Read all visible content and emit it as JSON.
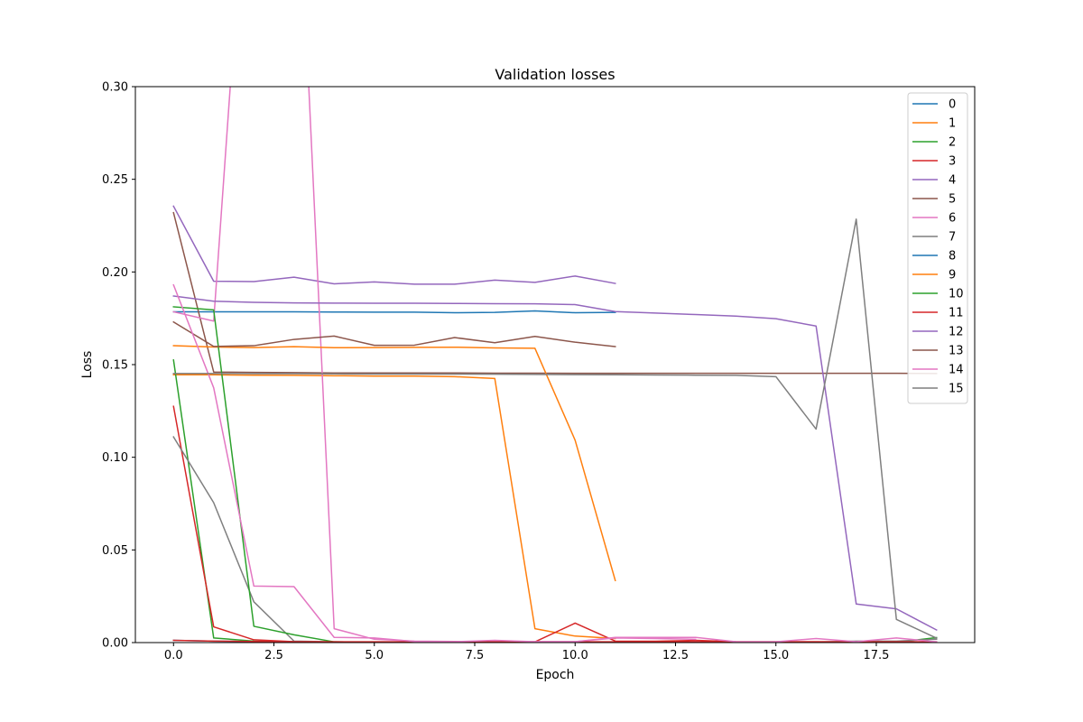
{
  "chart_data": {
    "type": "line",
    "title": "Validation losses",
    "xlabel": "Epoch",
    "ylabel": "Loss",
    "xlim": [
      -0.95,
      19.95
    ],
    "ylim": [
      0,
      0.3
    ],
    "x_ticks": [
      0.0,
      2.5,
      5.0,
      7.5,
      10.0,
      12.5,
      15.0,
      17.5
    ],
    "x_tick_labels": [
      "0.0",
      "2.5",
      "5.0",
      "7.5",
      "10.0",
      "12.5",
      "15.0",
      "17.5"
    ],
    "y_ticks": [
      0.0,
      0.05,
      0.1,
      0.15,
      0.2,
      0.25,
      0.3
    ],
    "y_tick_labels": [
      "0.00",
      "0.05",
      "0.10",
      "0.15",
      "0.20",
      "0.25",
      "0.30"
    ],
    "grid": false,
    "legend_position": "top-right",
    "series": [
      {
        "name": "0",
        "color": "#1f77b4",
        "x": [
          0,
          1,
          2,
          3,
          4,
          5,
          6,
          7,
          8,
          9,
          10,
          11
        ],
        "y": [
          0.1785,
          0.1785,
          0.1785,
          0.1785,
          0.1784,
          0.1783,
          0.1783,
          0.178,
          0.1782,
          0.179,
          0.178,
          0.1782
        ]
      },
      {
        "name": "1",
        "color": "#ff7f0e",
        "x": [
          0,
          1,
          2,
          3,
          4,
          5,
          6,
          7,
          8,
          9,
          10,
          11
        ],
        "y": [
          0.1445,
          0.1445,
          0.1443,
          0.1442,
          0.144,
          0.1438,
          0.1438,
          0.1435,
          0.1425,
          0.0075,
          0.0035,
          0.0022
        ]
      },
      {
        "name": "2",
        "color": "#2ca02c",
        "x": [
          0,
          1,
          2,
          3,
          4,
          5,
          6,
          7,
          8,
          9,
          10,
          11,
          12,
          13,
          14,
          15,
          16,
          17,
          18,
          19
        ],
        "y": [
          0.1525,
          0.0025,
          0.0008,
          0.0004,
          0.0002,
          0.0002,
          0.0002,
          0.0002,
          0.0002,
          0.0002,
          0.0002,
          0.0002,
          0.0002,
          0.0002,
          0.0002,
          0.0002,
          0.0002,
          0.0002,
          0.0002,
          0.0027
        ]
      },
      {
        "name": "3",
        "color": "#d62728",
        "x": [
          0,
          1,
          2,
          3,
          4,
          5,
          6,
          7,
          8,
          9,
          10,
          11,
          12,
          13,
          14,
          15,
          16,
          17,
          18,
          19
        ],
        "y": [
          0.1275,
          0.0085,
          0.0015,
          0.0005,
          0.0003,
          0.0003,
          0.0002,
          0.0002,
          0.0002,
          0.0004,
          0.0105,
          0.0008,
          0.0007,
          0.0012,
          0.0005,
          0.0004,
          0.0004,
          0.0003,
          0.0003,
          0.0003
        ]
      },
      {
        "name": "4",
        "color": "#9467bd",
        "x": [
          0,
          1,
          2,
          3,
          4,
          5,
          6,
          7,
          8,
          9,
          10,
          11
        ],
        "y": [
          0.2355,
          0.195,
          0.1948,
          0.1972,
          0.1936,
          0.1946,
          0.1934,
          0.1934,
          0.1956,
          0.1944,
          0.1978,
          0.1938
        ]
      },
      {
        "name": "5",
        "color": "#8c564b",
        "x": [
          0,
          1,
          2,
          3,
          4,
          5,
          6,
          7,
          8,
          9,
          10,
          11,
          12,
          13,
          14,
          15,
          16,
          17,
          18,
          19
        ],
        "y": [
          0.232,
          0.146,
          0.1458,
          0.1457,
          0.1455,
          0.1455,
          0.1455,
          0.1455,
          0.1454,
          0.1454,
          0.1453,
          0.1453,
          0.1453,
          0.1453,
          0.1453,
          0.1453,
          0.1453,
          0.1453,
          0.1453,
          0.1452
        ]
      },
      {
        "name": "6",
        "color": "#e377c2",
        "x": [
          0,
          1,
          2,
          3,
          4,
          5,
          6,
          7,
          8,
          9,
          10,
          11,
          12,
          13
        ],
        "y": [
          0.1785,
          0.1735,
          0.48,
          0.47,
          0.0075,
          0.0018,
          0.0008,
          0.0006,
          0.0005,
          0.0005,
          0.0005,
          0.0025,
          0.0022,
          0.0018
        ]
      },
      {
        "name": "7",
        "color": "#7f7f7f",
        "x": [
          0,
          1,
          2,
          3,
          4,
          5,
          6,
          7,
          8,
          9,
          10,
          11,
          12,
          13,
          14,
          15,
          16,
          17,
          18,
          19
        ],
        "y": [
          0.111,
          0.0755,
          0.022,
          0.0008,
          0.0004,
          0.0003,
          0.0003,
          0.0003,
          0.0003,
          0.0003,
          0.0003,
          0.0003,
          0.0003,
          0.0003,
          0.0003,
          0.0003,
          0.0003,
          0.0008,
          0.0008,
          0.0018
        ]
      },
      {
        "name": "8",
        "color": "#1f77b4",
        "x": [
          0,
          1,
          2,
          3,
          4,
          5,
          6,
          7,
          8,
          9,
          10,
          11,
          12,
          13,
          14,
          15,
          16,
          17,
          18,
          19
        ],
        "y": [
          0.0012,
          0.0008,
          0.0005,
          0.0004,
          0.0003,
          0.0003,
          0.0003,
          0.0003,
          0.0003,
          0.0003,
          0.0003,
          0.0003,
          0.0003,
          0.0003,
          0.0003,
          0.0003,
          0.0003,
          0.0003,
          0.0003,
          0.0003
        ]
      },
      {
        "name": "9",
        "color": "#ff7f0e",
        "x": [
          0,
          1,
          2,
          3,
          4,
          5,
          6,
          7,
          8,
          9,
          10,
          11
        ],
        "y": [
          0.1602,
          0.1595,
          0.1592,
          0.1597,
          0.1591,
          0.1592,
          0.1593,
          0.1594,
          0.159,
          0.1588,
          0.1092,
          0.0335
        ]
      },
      {
        "name": "10",
        "color": "#2ca02c",
        "x": [
          0,
          1,
          2,
          3,
          4,
          5,
          6,
          7,
          8,
          9,
          10,
          11,
          12,
          13,
          14,
          15,
          16,
          17,
          18,
          19
        ],
        "y": [
          0.1812,
          0.1795,
          0.0088,
          0.0042,
          0.0004,
          0.0003,
          0.0003,
          0.0003,
          0.0003,
          0.0003,
          0.0003,
          0.0003,
          0.0003,
          0.0003,
          0.0003,
          0.0003,
          0.0003,
          0.0003,
          0.0003,
          0.0003
        ]
      },
      {
        "name": "11",
        "color": "#d62728",
        "x": [
          0,
          1,
          2,
          3,
          4,
          5,
          6,
          7,
          8,
          9,
          10,
          11,
          12,
          13,
          14,
          15,
          16,
          17,
          18,
          19
        ],
        "y": [
          0.0012,
          0.0008,
          0.0006,
          0.0005,
          0.0004,
          0.0004,
          0.0004,
          0.0004,
          0.0004,
          0.0004,
          0.0004,
          0.0004,
          0.0004,
          0.0004,
          0.0004,
          0.0004,
          0.0004,
          0.0004,
          0.0004,
          0.0004
        ]
      },
      {
        "name": "12",
        "color": "#9467bd",
        "x": [
          0,
          1,
          2,
          3,
          4,
          5,
          6,
          7,
          8,
          9,
          10,
          11,
          12,
          13,
          14,
          15,
          16,
          17,
          18,
          19
        ],
        "y": [
          0.187,
          0.1842,
          0.1836,
          0.1833,
          0.1832,
          0.1831,
          0.1831,
          0.183,
          0.1829,
          0.1828,
          0.1824,
          0.1786,
          0.1778,
          0.177,
          0.1762,
          0.1748,
          0.1708,
          0.0208,
          0.0182,
          0.0068
        ]
      },
      {
        "name": "13",
        "color": "#8c564b",
        "x": [
          0,
          1,
          2,
          3,
          4,
          5,
          6,
          7,
          8,
          9,
          10,
          11
        ],
        "y": [
          0.173,
          0.1598,
          0.1602,
          0.1636,
          0.1654,
          0.1604,
          0.1605,
          0.1646,
          0.1618,
          0.1652,
          0.1621,
          0.1597
        ]
      },
      {
        "name": "14",
        "color": "#e377c2",
        "x": [
          0,
          1,
          2,
          3,
          4,
          5,
          6,
          7,
          8,
          9,
          10,
          11,
          12,
          13,
          14,
          15,
          16,
          17,
          18,
          19
        ],
        "y": [
          0.193,
          0.1375,
          0.0305,
          0.0302,
          0.0028,
          0.0025,
          0.0006,
          0.0005,
          0.0012,
          0.0005,
          0.0005,
          0.0028,
          0.0028,
          0.0028,
          0.0005,
          0.0004,
          0.0022,
          0.0005,
          0.0025,
          0.0004
        ]
      },
      {
        "name": "15",
        "color": "#7f7f7f",
        "x": [
          0,
          1,
          2,
          3,
          4,
          5,
          6,
          7,
          8,
          9,
          10,
          11,
          12,
          13,
          14,
          15,
          16,
          17,
          18,
          19
        ],
        "y": [
          0.1452,
          0.1452,
          0.1451,
          0.1451,
          0.145,
          0.1449,
          0.1449,
          0.1449,
          0.1448,
          0.1447,
          0.1446,
          0.1445,
          0.1444,
          0.1443,
          0.1442,
          0.1435,
          0.1152,
          0.2285,
          0.0125,
          0.0024
        ]
      }
    ]
  }
}
